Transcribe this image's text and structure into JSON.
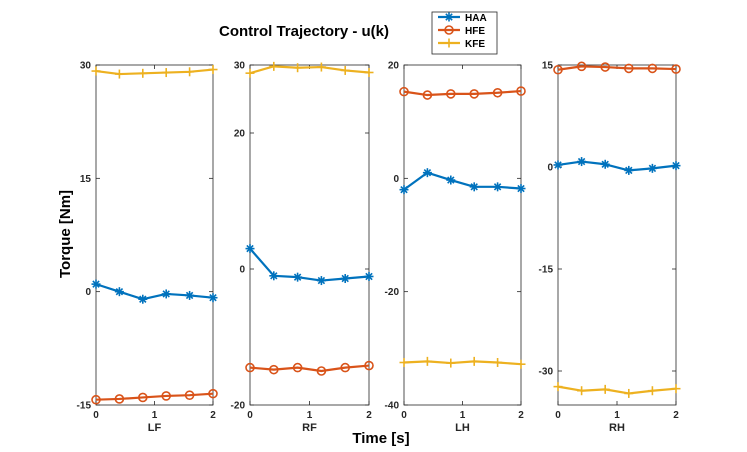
{
  "chart_data": {
    "type": "line",
    "title": "Control Trajectory - u(k)",
    "xlabel": "Time [s]",
    "ylabel": "Torque [Nm]",
    "legend": {
      "placement": "top-center",
      "entries": [
        "HAA",
        "HFE",
        "KFE"
      ]
    },
    "colors": {
      "HAA": "#0072BD",
      "HFE": "#D95319",
      "KFE": "#EDB120"
    },
    "x": [
      0,
      0.4,
      0.8,
      1.2,
      1.6,
      2.0
    ],
    "xlim": [
      0,
      2
    ],
    "xticks": [
      0,
      1,
      2
    ],
    "panels": [
      {
        "label": "LF",
        "ylim": [
          -15,
          30
        ],
        "yticks": [
          -15,
          0,
          15,
          30
        ],
        "series": [
          {
            "name": "HAA",
            "values": [
              1.0,
              0.0,
              -1.0,
              -0.3,
              -0.5,
              -0.8
            ]
          },
          {
            "name": "HFE",
            "values": [
              -14.3,
              -14.2,
              -14.0,
              -13.8,
              -13.7,
              -13.5
            ]
          },
          {
            "name": "KFE",
            "values": [
              29.2,
              28.8,
              28.9,
              29.0,
              29.1,
              29.4
            ]
          }
        ]
      },
      {
        "label": "RF",
        "ylim": [
          -20,
          30
        ],
        "yticks": [
          -20,
          0,
          20,
          30
        ],
        "series": [
          {
            "name": "HAA",
            "values": [
              3.0,
              -1.0,
              -1.2,
              -1.7,
              -1.4,
              -1.1
            ]
          },
          {
            "name": "HFE",
            "values": [
              -14.5,
              -14.8,
              -14.5,
              -15.0,
              -14.5,
              -14.2
            ]
          },
          {
            "name": "KFE",
            "values": [
              28.8,
              29.8,
              29.6,
              29.7,
              29.2,
              28.9
            ]
          }
        ]
      },
      {
        "label": "LH",
        "ylim": [
          -40,
          20
        ],
        "yticks": [
          -40,
          -20,
          0,
          20
        ],
        "series": [
          {
            "name": "HAA",
            "values": [
              -2.0,
              1.0,
              -0.3,
              -1.5,
              -1.5,
              -1.8
            ]
          },
          {
            "name": "HFE",
            "values": [
              15.3,
              14.7,
              14.9,
              14.9,
              15.1,
              15.4
            ]
          },
          {
            "name": "KFE",
            "values": [
              -32.5,
              -32.3,
              -32.6,
              -32.3,
              -32.5,
              -32.8
            ]
          }
        ]
      },
      {
        "label": "RH",
        "ylim": [
          -35,
          15
        ],
        "yticks": [
          -30,
          -15,
          0,
          15
        ],
        "series": [
          {
            "name": "HAA",
            "values": [
              0.3,
              0.8,
              0.4,
              -0.5,
              -0.2,
              0.2
            ]
          },
          {
            "name": "HFE",
            "values": [
              14.3,
              14.8,
              14.7,
              14.5,
              14.5,
              14.4
            ]
          },
          {
            "name": "KFE",
            "values": [
              -32.3,
              -32.9,
              -32.7,
              -33.3,
              -32.9,
              -32.6
            ]
          }
        ]
      }
    ]
  }
}
